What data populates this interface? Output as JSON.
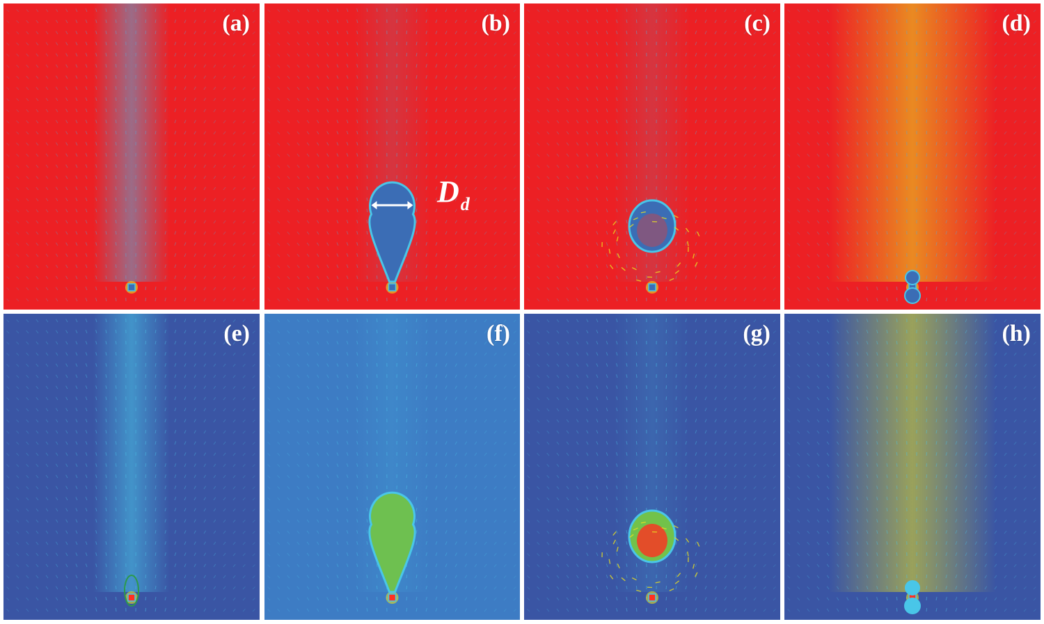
{
  "panels": [
    {
      "id": "a",
      "label": "(a)",
      "background": "#ec2024",
      "state": "pinch",
      "row": "phase"
    },
    {
      "id": "b",
      "label": "(b)",
      "background": "#ec2024",
      "state": "teardrop",
      "row": "phase"
    },
    {
      "id": "c",
      "label": "(c)",
      "background": "#ec2024",
      "state": "detached",
      "row": "phase"
    },
    {
      "id": "d",
      "label": "(d)",
      "background": "#ec2024",
      "state": "restart",
      "row": "phase"
    },
    {
      "id": "e",
      "label": "(e)",
      "background": "#3a55a4",
      "state": "pinch",
      "row": "pressure"
    },
    {
      "id": "f",
      "label": "(f)",
      "background": "#3d7cc4",
      "state": "teardrop",
      "row": "pressure"
    },
    {
      "id": "g",
      "label": "(g)",
      "background": "#3a55a4",
      "state": "detached",
      "row": "pressure"
    },
    {
      "id": "h",
      "label": "(h)",
      "background": "#3a55a4",
      "state": "restart",
      "row": "pressure"
    }
  ],
  "annotation": {
    "symbol": "D",
    "subscript": "d"
  },
  "colors": {
    "phase_background": "#ec2024",
    "pressure_background": "#3a55a4",
    "droplet_fill": "#3b6db5",
    "interface": "#49c6e8",
    "vector": "#5aa9d8",
    "high": "#e8e020",
    "hot": "#ff3020"
  }
}
